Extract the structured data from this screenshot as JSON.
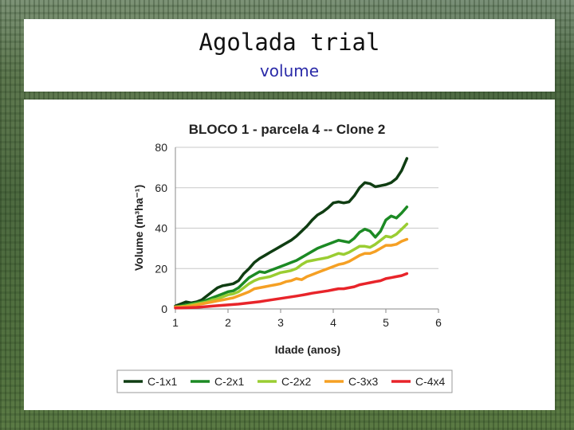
{
  "slide": {
    "title": "Agolada trial",
    "subtitle": "volume"
  },
  "chart_data": {
    "type": "line",
    "title": "BLOCO 1 -  parcela 4 -- Clone 2",
    "xlabel": "Idade (anos)",
    "ylabel": "Volume (m³ha⁻¹)",
    "xlim": [
      1,
      6
    ],
    "ylim": [
      0,
      80
    ],
    "xticks": [
      1,
      2,
      3,
      4,
      5,
      6
    ],
    "yticks": [
      0,
      20,
      40,
      60,
      80
    ],
    "grid": "horizontal",
    "legend": "bottom",
    "series": [
      {
        "name": "C-1x1",
        "color": "#0f3d12",
        "x": [
          1.0,
          1.1,
          1.2,
          1.3,
          1.4,
          1.5,
          1.6,
          1.7,
          1.8,
          1.9,
          2.0,
          2.1,
          2.2,
          2.3,
          2.4,
          2.5,
          2.6,
          2.7,
          2.8,
          2.9,
          3.0,
          3.1,
          3.2,
          3.3,
          3.4,
          3.5,
          3.6,
          3.7,
          3.8,
          3.9,
          4.0,
          4.1,
          4.2,
          4.3,
          4.4,
          4.5,
          4.6,
          4.7,
          4.8,
          4.9,
          5.0,
          5.1,
          5.2,
          5.3,
          5.4
        ],
        "y": [
          1.5,
          2.5,
          3.5,
          3.0,
          3.5,
          4.5,
          6.5,
          8.5,
          10.5,
          11.5,
          12.0,
          12.5,
          14.0,
          17.5,
          20.0,
          23.0,
          25.0,
          26.5,
          28.0,
          29.5,
          31.0,
          32.5,
          34.0,
          36.0,
          38.5,
          41.0,
          44.0,
          46.5,
          48.0,
          50.0,
          52.5,
          53.0,
          52.5,
          53.0,
          56.0,
          60.0,
          62.5,
          62.0,
          60.5,
          61.0,
          61.5,
          62.5,
          64.5,
          68.5,
          74.5
        ]
      },
      {
        "name": "C-2x1",
        "color": "#1c8a24",
        "x": [
          1.0,
          1.1,
          1.2,
          1.3,
          1.4,
          1.5,
          1.6,
          1.7,
          1.8,
          1.9,
          2.0,
          2.1,
          2.2,
          2.3,
          2.4,
          2.5,
          2.6,
          2.7,
          2.8,
          2.9,
          3.0,
          3.1,
          3.2,
          3.3,
          3.4,
          3.5,
          3.6,
          3.7,
          3.8,
          3.9,
          4.0,
          4.1,
          4.2,
          4.3,
          4.4,
          4.5,
          4.6,
          4.7,
          4.8,
          4.9,
          5.0,
          5.1,
          5.2,
          5.3,
          5.4
        ],
        "y": [
          1.0,
          1.5,
          2.0,
          2.5,
          3.0,
          3.5,
          4.5,
          5.5,
          6.5,
          7.5,
          8.5,
          9.0,
          10.5,
          13.0,
          15.5,
          17.0,
          18.5,
          18.0,
          19.0,
          20.0,
          21.0,
          22.0,
          23.0,
          24.0,
          25.5,
          27.0,
          28.5,
          30.0,
          31.0,
          32.0,
          33.0,
          34.0,
          33.5,
          33.0,
          35.0,
          38.0,
          39.5,
          38.5,
          35.5,
          38.5,
          44.0,
          46.0,
          45.0,
          47.5,
          50.5
        ]
      },
      {
        "name": "C-2x2",
        "color": "#9acd32",
        "x": [
          1.0,
          1.1,
          1.2,
          1.3,
          1.4,
          1.5,
          1.6,
          1.7,
          1.8,
          1.9,
          2.0,
          2.1,
          2.2,
          2.3,
          2.4,
          2.5,
          2.6,
          2.7,
          2.8,
          2.9,
          3.0,
          3.1,
          3.2,
          3.3,
          3.4,
          3.5,
          3.6,
          3.7,
          3.8,
          3.9,
          4.0,
          4.1,
          4.2,
          4.3,
          4.4,
          4.5,
          4.6,
          4.7,
          4.8,
          4.9,
          5.0,
          5.1,
          5.2,
          5.3,
          5.4
        ],
        "y": [
          1.0,
          1.2,
          1.5,
          2.0,
          2.5,
          3.0,
          3.5,
          4.5,
          5.0,
          6.0,
          7.0,
          7.5,
          8.5,
          10.5,
          12.5,
          14.0,
          15.0,
          15.5,
          16.0,
          17.0,
          18.0,
          18.5,
          19.0,
          20.0,
          22.0,
          23.5,
          24.0,
          24.5,
          25.0,
          25.5,
          26.5,
          27.5,
          27.0,
          28.0,
          29.5,
          31.0,
          31.0,
          30.5,
          32.0,
          34.0,
          36.0,
          35.5,
          37.0,
          39.5,
          42.0
        ]
      },
      {
        "name": "C-3x3",
        "color": "#f5a024",
        "x": [
          1.0,
          1.1,
          1.2,
          1.3,
          1.4,
          1.5,
          1.6,
          1.7,
          1.8,
          1.9,
          2.0,
          2.1,
          2.2,
          2.3,
          2.4,
          2.5,
          2.6,
          2.7,
          2.8,
          2.9,
          3.0,
          3.1,
          3.2,
          3.3,
          3.4,
          3.5,
          3.6,
          3.7,
          3.8,
          3.9,
          4.0,
          4.1,
          4.2,
          4.3,
          4.4,
          4.5,
          4.6,
          4.7,
          4.8,
          4.9,
          5.0,
          5.1,
          5.2,
          5.3,
          5.4
        ],
        "y": [
          1.0,
          1.0,
          1.2,
          1.5,
          2.0,
          2.5,
          3.0,
          3.5,
          4.0,
          4.5,
          5.0,
          5.5,
          6.5,
          7.5,
          8.5,
          10.0,
          10.5,
          11.0,
          11.5,
          12.0,
          12.5,
          13.5,
          14.0,
          15.0,
          14.5,
          16.0,
          17.0,
          18.0,
          19.0,
          20.0,
          21.0,
          22.0,
          22.5,
          23.5,
          25.0,
          26.5,
          27.5,
          27.5,
          28.5,
          30.0,
          31.5,
          31.5,
          32.0,
          33.5,
          34.5
        ]
      },
      {
        "name": "C-4x4",
        "color": "#e8242a",
        "x": [
          1.0,
          1.1,
          1.2,
          1.3,
          1.4,
          1.5,
          1.6,
          1.7,
          1.8,
          1.9,
          2.0,
          2.1,
          2.2,
          2.3,
          2.4,
          2.5,
          2.6,
          2.7,
          2.8,
          2.9,
          3.0,
          3.1,
          3.2,
          3.3,
          3.4,
          3.5,
          3.6,
          3.7,
          3.8,
          3.9,
          4.0,
          4.1,
          4.2,
          4.3,
          4.4,
          4.5,
          4.6,
          4.7,
          4.8,
          4.9,
          5.0,
          5.1,
          5.2,
          5.3,
          5.4
        ],
        "y": [
          0.5,
          0.5,
          0.6,
          0.7,
          0.8,
          1.0,
          1.2,
          1.4,
          1.6,
          1.8,
          2.0,
          2.2,
          2.4,
          2.7,
          3.0,
          3.3,
          3.6,
          4.0,
          4.4,
          4.8,
          5.2,
          5.6,
          6.0,
          6.4,
          6.8,
          7.3,
          7.8,
          8.2,
          8.6,
          9.0,
          9.5,
          10.0,
          10.0,
          10.5,
          11.0,
          12.0,
          12.5,
          13.0,
          13.5,
          14.0,
          15.0,
          15.5,
          16.0,
          16.5,
          17.5
        ]
      }
    ]
  }
}
